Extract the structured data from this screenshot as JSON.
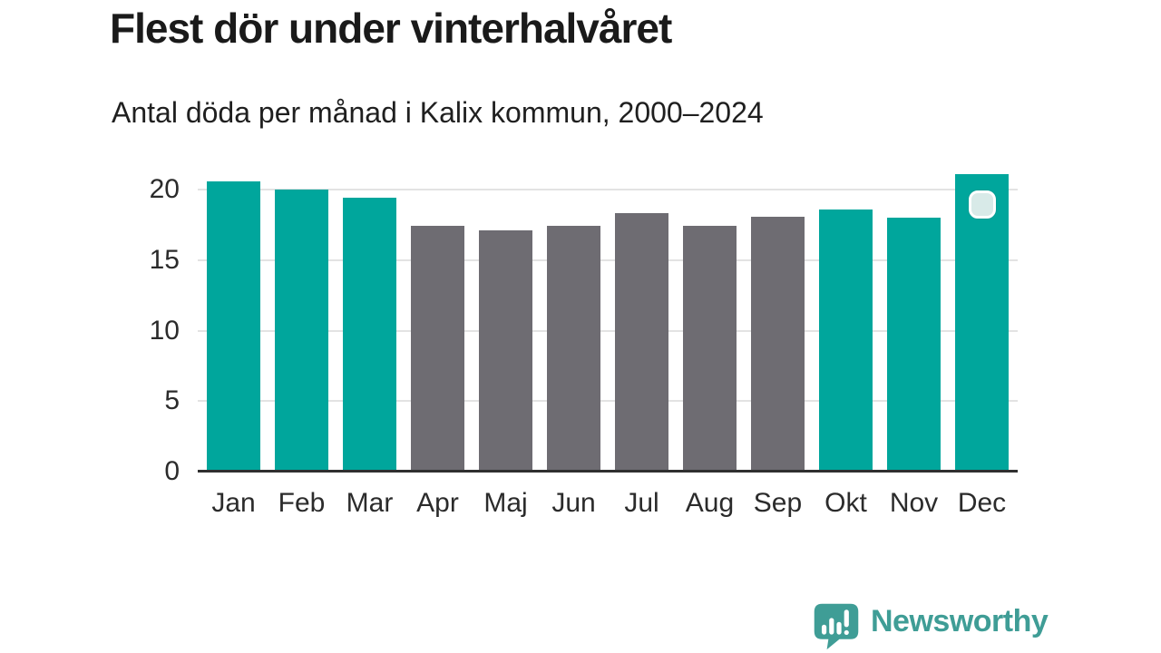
{
  "chart_data": {
    "type": "bar",
    "title": "Flest dör under vinterhalvåret",
    "subtitle": "Antal döda per månad i Kalix kommun, 2000–2024",
    "categories": [
      "Jan",
      "Feb",
      "Mar",
      "Apr",
      "Maj",
      "Jun",
      "Jul",
      "Aug",
      "Sep",
      "Okt",
      "Nov",
      "Dec"
    ],
    "values": [
      20.6,
      20.0,
      19.4,
      17.4,
      17.1,
      17.4,
      18.3,
      17.4,
      18.1,
      18.6,
      18.0,
      21.1
    ],
    "highlight_categories": [
      "Jan",
      "Feb",
      "Mar",
      "Okt",
      "Nov",
      "Dec"
    ],
    "marker": {
      "category": "Dec"
    },
    "yticks": [
      0,
      5,
      10,
      15,
      20
    ],
    "ylim": [
      0,
      21.5
    ],
    "grid": "horizontal",
    "legend": "none",
    "xlabel": "",
    "ylabel": "",
    "colors": {
      "highlight_bar": "#00a69c",
      "base_bar": "#6e6c72",
      "axis_line": "#2f2f2f",
      "gridline": "#e3e3e3",
      "marker_fill": "#d8eae8",
      "marker_border": "#ffffff",
      "title_text": "#1a1a1a",
      "tick_text": "#2b2b2b"
    }
  },
  "footer": {
    "brand": "Newsworthy",
    "brand_color": "#3f9d96",
    "icon": "newsworthy-speech-bubble-bar-chart-icon"
  }
}
